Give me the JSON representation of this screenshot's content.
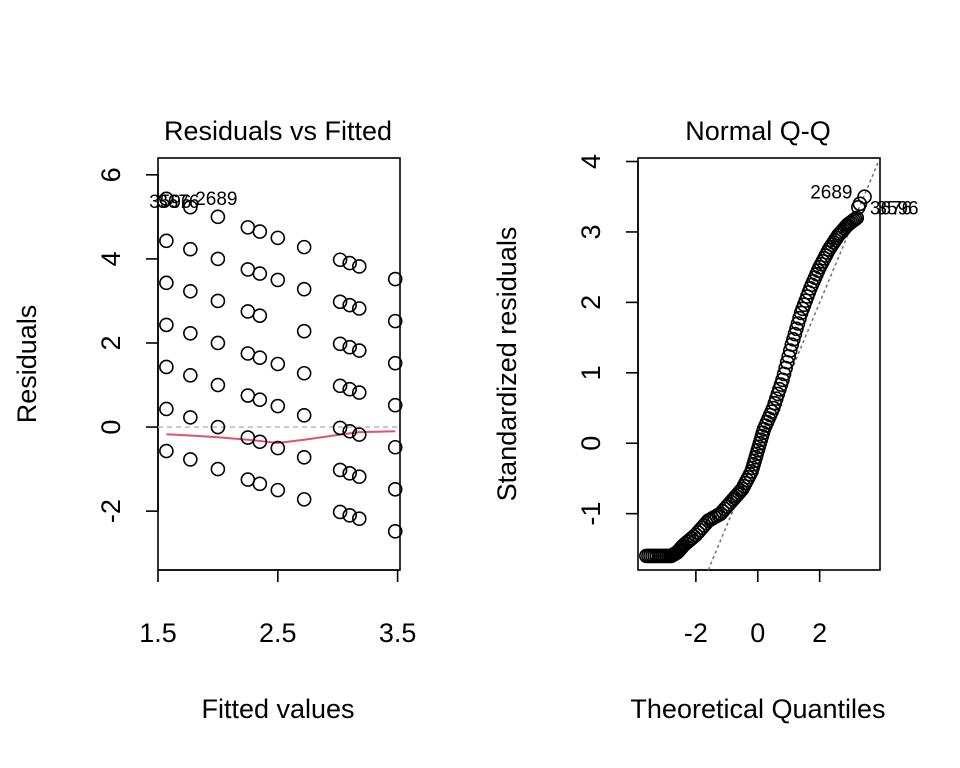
{
  "chart_data": [
    {
      "type": "scatter",
      "title": "Residuals vs Fitted",
      "xlabel": "Fitted values",
      "ylabel": "Residuals",
      "xlim": [
        1.5,
        3.52
      ],
      "ylim": [
        -3.4,
        6.4
      ],
      "xticks": [
        1.5,
        2.5,
        3.5
      ],
      "xtick_labels": [
        "1.5",
        "2.5",
        "3.5"
      ],
      "yticks": [
        -2,
        0,
        2,
        4,
        6
      ],
      "ytick_labels": [
        "-2",
        "0",
        "2",
        "4",
        "6"
      ],
      "grid": false,
      "fitted_levels": [
        1.57,
        1.77,
        2.0,
        2.25,
        2.35,
        2.5,
        2.72,
        3.02,
        3.1,
        3.18,
        3.48
      ],
      "points": [
        [
          1.57,
          5.43
        ],
        [
          1.57,
          4.43
        ],
        [
          1.57,
          3.43
        ],
        [
          1.57,
          2.43
        ],
        [
          1.57,
          1.43
        ],
        [
          1.57,
          0.43
        ],
        [
          1.57,
          -0.57
        ],
        [
          1.77,
          5.23
        ],
        [
          1.77,
          4.23
        ],
        [
          1.77,
          3.23
        ],
        [
          1.77,
          2.23
        ],
        [
          1.77,
          1.23
        ],
        [
          1.77,
          0.23
        ],
        [
          1.77,
          -0.77
        ],
        [
          2.0,
          5.0
        ],
        [
          2.0,
          4.0
        ],
        [
          2.0,
          3.0
        ],
        [
          2.0,
          2.0
        ],
        [
          2.0,
          1.0
        ],
        [
          2.0,
          0.0
        ],
        [
          2.0,
          -1.0
        ],
        [
          2.25,
          4.75
        ],
        [
          2.25,
          3.75
        ],
        [
          2.25,
          2.75
        ],
        [
          2.25,
          1.75
        ],
        [
          2.25,
          0.75
        ],
        [
          2.25,
          -0.25
        ],
        [
          2.25,
          -1.25
        ],
        [
          2.35,
          4.65
        ],
        [
          2.35,
          3.65
        ],
        [
          2.35,
          2.65
        ],
        [
          2.35,
          1.65
        ],
        [
          2.35,
          0.65
        ],
        [
          2.35,
          -0.35
        ],
        [
          2.35,
          -1.35
        ],
        [
          2.5,
          4.5
        ],
        [
          2.5,
          3.5
        ],
        [
          2.5,
          1.5
        ],
        [
          2.5,
          0.5
        ],
        [
          2.5,
          -0.5
        ],
        [
          2.5,
          -1.5
        ],
        [
          2.72,
          4.28
        ],
        [
          2.72,
          3.28
        ],
        [
          2.72,
          2.28
        ],
        [
          2.72,
          1.28
        ],
        [
          2.72,
          0.28
        ],
        [
          2.72,
          -0.72
        ],
        [
          2.72,
          -1.72
        ],
        [
          3.02,
          3.98
        ],
        [
          3.02,
          2.98
        ],
        [
          3.02,
          1.98
        ],
        [
          3.02,
          0.98
        ],
        [
          3.02,
          -0.02
        ],
        [
          3.02,
          -1.02
        ],
        [
          3.02,
          -2.02
        ],
        [
          3.1,
          3.9
        ],
        [
          3.1,
          2.9
        ],
        [
          3.1,
          1.9
        ],
        [
          3.1,
          0.9
        ],
        [
          3.1,
          -0.1
        ],
        [
          3.1,
          -1.1
        ],
        [
          3.1,
          -2.1
        ],
        [
          3.18,
          3.82
        ],
        [
          3.18,
          2.82
        ],
        [
          3.18,
          1.82
        ],
        [
          3.18,
          0.82
        ],
        [
          3.18,
          -0.18
        ],
        [
          3.18,
          -1.18
        ],
        [
          3.18,
          -2.18
        ],
        [
          3.48,
          3.52
        ],
        [
          3.48,
          2.52
        ],
        [
          3.48,
          1.52
        ],
        [
          3.48,
          0.52
        ],
        [
          3.48,
          -0.48
        ],
        [
          3.48,
          -1.48
        ],
        [
          3.48,
          -2.48
        ]
      ],
      "smooth_line": [
        [
          1.57,
          -0.17
        ],
        [
          1.77,
          -0.2
        ],
        [
          2.0,
          -0.24
        ],
        [
          2.25,
          -0.3
        ],
        [
          2.5,
          -0.38
        ],
        [
          2.72,
          -0.3
        ],
        [
          3.02,
          -0.18
        ],
        [
          3.18,
          -0.12
        ],
        [
          3.48,
          -0.1
        ]
      ],
      "reference_line_y": 0,
      "point_labels": [
        {
          "text": "3596",
          "x": 1.57,
          "y": 5.43
        },
        {
          "text": "3676",
          "x": 1.57,
          "y": 5.43
        },
        {
          "text": "2689",
          "x": 1.77,
          "y": 5.23
        }
      ],
      "colors": {
        "points": "#000000",
        "smooth": "#df536b",
        "reference": "#bebebe"
      }
    },
    {
      "type": "scatter",
      "title": "Normal Q-Q",
      "xlabel": "Theoretical Quantiles",
      "ylabel": "Standardized residuals",
      "xlim": [
        -3.87,
        3.95
      ],
      "ylim": [
        -1.8,
        4.05
      ],
      "xticks": [
        -2,
        0,
        2
      ],
      "xtick_labels": [
        "-2",
        "0",
        "2"
      ],
      "yticks": [
        -1,
        0,
        1,
        2,
        3,
        4
      ],
      "ytick_labels": [
        "-1",
        "0",
        "1",
        "2",
        "3",
        "4"
      ],
      "grid": false,
      "qq_curve": [
        [
          -3.6,
          -1.6
        ],
        [
          -3.2,
          -1.6
        ],
        [
          -2.8,
          -1.6
        ],
        [
          -2.6,
          -1.55
        ],
        [
          -2.4,
          -1.45
        ],
        [
          -2.0,
          -1.3
        ],
        [
          -1.6,
          -1.1
        ],
        [
          -1.2,
          -1.0
        ],
        [
          -0.8,
          -0.8
        ],
        [
          -0.5,
          -0.65
        ],
        [
          -0.2,
          -0.4
        ],
        [
          0.0,
          -0.1
        ],
        [
          0.2,
          0.2
        ],
        [
          0.5,
          0.5
        ],
        [
          0.8,
          0.9
        ],
        [
          1.1,
          1.4
        ],
        [
          1.4,
          1.85
        ],
        [
          1.7,
          2.2
        ],
        [
          2.0,
          2.5
        ],
        [
          2.3,
          2.75
        ],
        [
          2.6,
          2.95
        ],
        [
          2.9,
          3.1
        ],
        [
          3.2,
          3.2
        ]
      ],
      "qq_line": [
        [
          -1.6,
          -1.8
        ],
        [
          3.9,
          4.0
        ]
      ],
      "outliers": [
        [
          3.45,
          3.5
        ],
        [
          3.3,
          3.4
        ],
        [
          3.25,
          3.35
        ]
      ],
      "point_labels": [
        {
          "text": "2689",
          "x": 3.45,
          "y": 3.5
        },
        {
          "text": "3676",
          "x": 3.3,
          "y": 3.35
        },
        {
          "text": "3596",
          "x": 3.25,
          "y": 3.35
        }
      ],
      "colors": {
        "points": "#000000",
        "qq_line": "#707070"
      }
    }
  ]
}
